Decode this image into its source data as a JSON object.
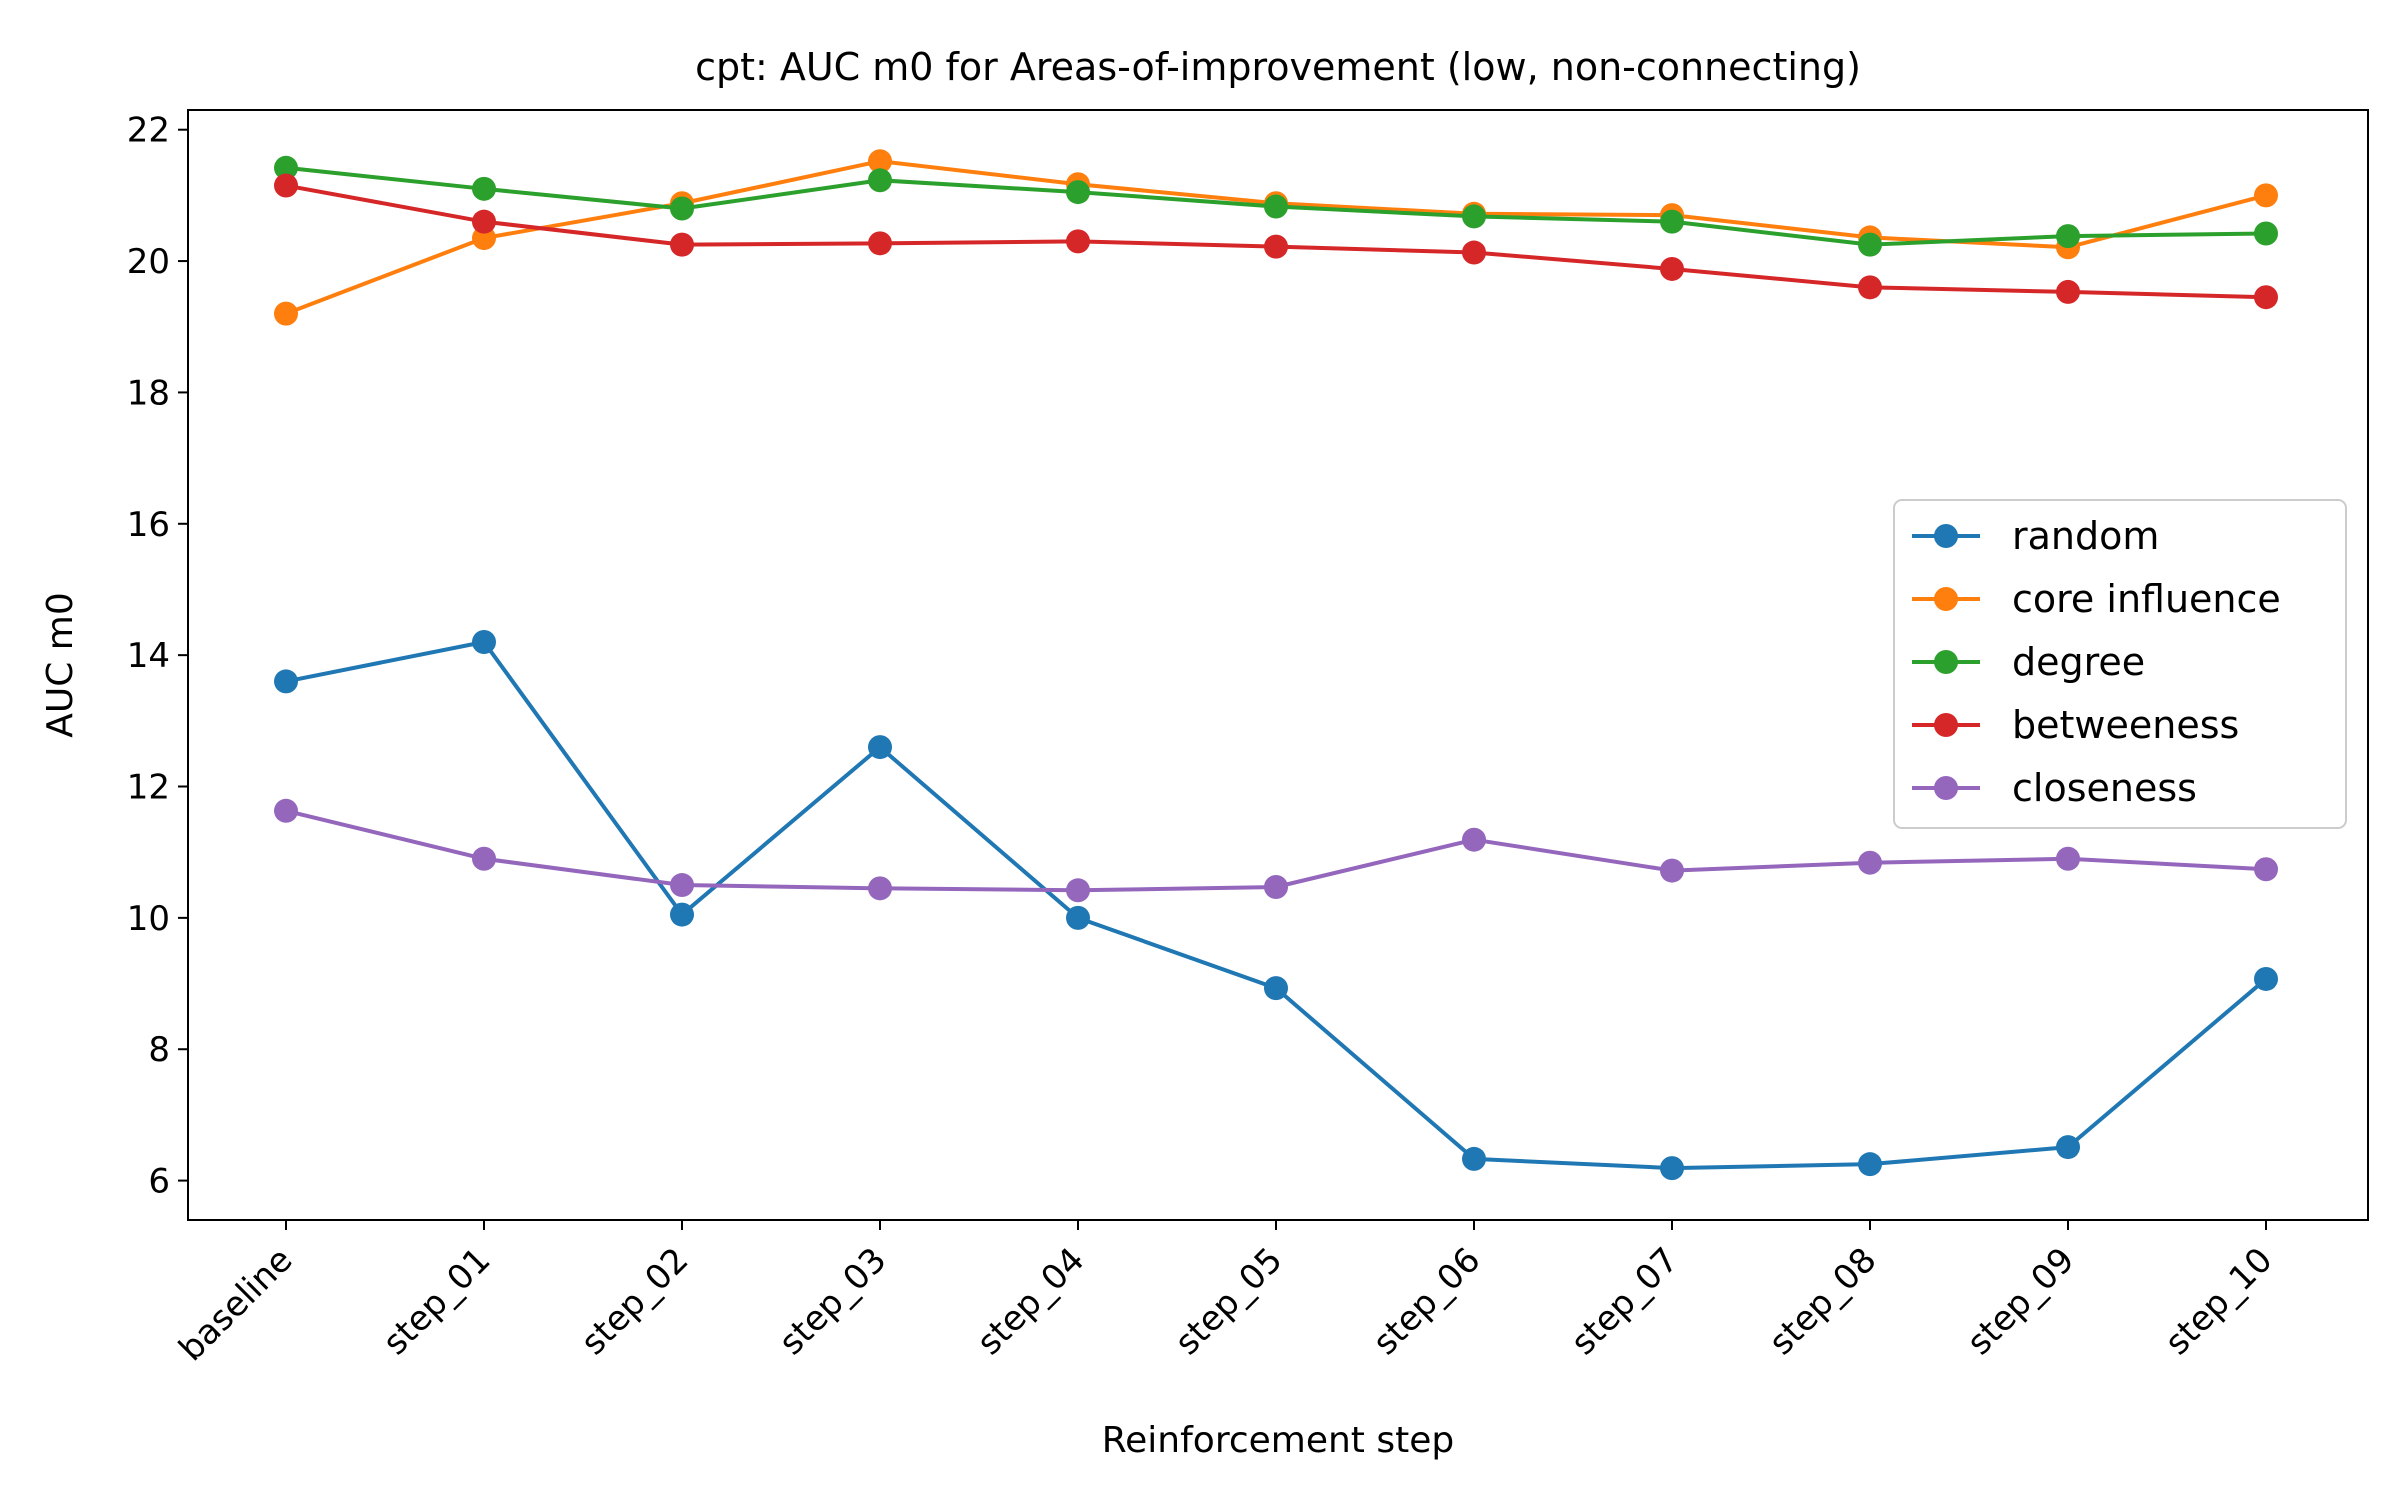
{
  "chart_data": {
    "type": "line",
    "title": "cpt: AUC m0 for Areas-of-improvement (low, non-connecting)",
    "xlabel": "Reinforcement step",
    "ylabel": "AUC m0",
    "categories": [
      "baseline",
      "step_01",
      "step_02",
      "step_03",
      "step_04",
      "step_05",
      "step_06",
      "step_07",
      "step_08",
      "step_09",
      "step_10"
    ],
    "ylim": [
      5.4,
      22.3
    ],
    "yticks": [
      6,
      8,
      10,
      12,
      14,
      16,
      18,
      20,
      22
    ],
    "grid": false,
    "legend_position": "center-right",
    "series": [
      {
        "name": "random",
        "color": "#1f77b4",
        "values": [
          13.6,
          14.2,
          10.05,
          12.6,
          10.0,
          8.93,
          6.33,
          6.19,
          6.25,
          6.51,
          9.07
        ]
      },
      {
        "name": "core influence",
        "color": "#ff7f0e",
        "values": [
          19.2,
          20.35,
          20.88,
          21.52,
          21.17,
          20.88,
          20.72,
          20.7,
          20.36,
          20.21,
          21.0
        ]
      },
      {
        "name": "degree",
        "color": "#2ca02c",
        "values": [
          21.42,
          21.1,
          20.8,
          21.23,
          21.05,
          20.83,
          20.68,
          20.6,
          20.25,
          20.38,
          20.42
        ]
      },
      {
        "name": "betweeness",
        "color": "#d62728",
        "values": [
          21.15,
          20.6,
          20.25,
          20.27,
          20.3,
          20.22,
          20.13,
          19.88,
          19.6,
          19.53,
          19.45
        ]
      },
      {
        "name": "closeness",
        "color": "#9467bd",
        "values": [
          11.63,
          10.9,
          10.5,
          10.45,
          10.42,
          10.47,
          11.19,
          10.72,
          10.84,
          10.9,
          10.74
        ]
      }
    ]
  }
}
